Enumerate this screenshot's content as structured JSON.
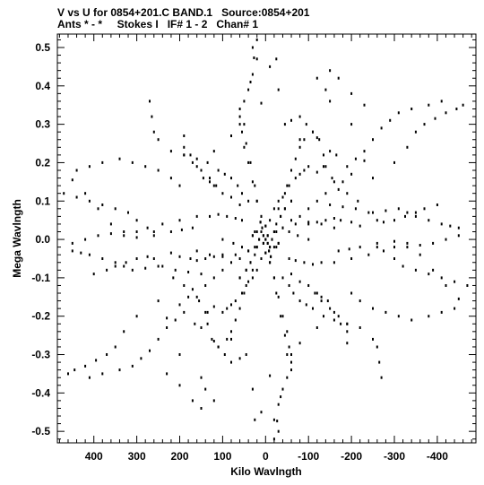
{
  "header": {
    "line1": "V vs U for 0854+201.C BAND.1   Source:0854+201",
    "line2": "Ants * - *     Stokes I   IF# 1 - 2   Chan# 1"
  },
  "colors": {
    "points": "#000000",
    "frame": "#000000",
    "background": "#ffffff"
  },
  "chart_data": {
    "type": "scatter",
    "xlabel": "Kilo Wavlngth",
    "ylabel": "Mega Wavlngth",
    "xlim": [
      485,
      -490
    ],
    "ylim": [
      -0.53,
      0.535
    ],
    "x_ticks": [
      400,
      300,
      200,
      100,
      0,
      -100,
      -200,
      -300,
      -400
    ],
    "x_tick_labels": [
      "400",
      "300",
      "200",
      "100",
      "0",
      "-100",
      "-200",
      "-300",
      "-400"
    ],
    "y_ticks": [
      0.5,
      0.4,
      0.3,
      0.2,
      0.1,
      0.0,
      -0.1,
      -0.2,
      -0.3,
      -0.4,
      -0.5
    ],
    "y_tick_labels": [
      "0.5",
      "0.4",
      "0.3",
      "0.2",
      "0.1",
      "0.0",
      "-0.1",
      "-0.2",
      "-0.3",
      "-0.4",
      "-0.5"
    ],
    "x_axis_direction": "reversed",
    "grid": false,
    "series": [
      {
        "points": [
          [
            20,
            0.52
          ],
          [
            27,
            0.473
          ],
          [
            35,
            0.41
          ],
          [
            10,
            0.355
          ],
          [
            -30,
            0.39
          ],
          [
            -45,
            0.3
          ],
          [
            -60,
            0.31
          ],
          [
            -80,
            0.26
          ],
          [
            -110,
            0.28
          ],
          [
            -120,
            0.175
          ],
          [
            -120,
            0.265
          ],
          [
            -135,
            0.19
          ],
          [
            -150,
            0.23
          ],
          [
            -165,
            0.22
          ],
          [
            -180,
            0.15
          ],
          [
            -200,
            0.17
          ],
          [
            -230,
            0.205
          ],
          [
            -250,
            0.16
          ],
          [
            -300,
            0.2
          ],
          [
            -330,
            0.24
          ],
          [
            -350,
            0.28
          ],
          [
            -370,
            0.3
          ],
          [
            -395,
            0.315
          ],
          [
            -420,
            0.33
          ],
          [
            -445,
            0.34
          ],
          [
            -460,
            0.35
          ],
          [
            -150,
            0.09
          ],
          [
            -180,
            0.085
          ],
          [
            -210,
            0.08
          ],
          [
            -250,
            0.07
          ],
          [
            -280,
            0.075
          ],
          [
            -310,
            0.08
          ],
          [
            -330,
            0.07
          ],
          [
            -350,
            0.06
          ],
          [
            -380,
            0.05
          ],
          [
            -410,
            0.04
          ],
          [
            -430,
            0.035
          ],
          [
            -450,
            0.03
          ],
          [
            -100,
            0.04
          ],
          [
            -120,
            0.045
          ],
          [
            -140,
            0.05
          ],
          [
            -160,
            0.055
          ],
          [
            -175,
            0.05
          ],
          [
            -200,
            0.045
          ],
          [
            -220,
            0.035
          ],
          [
            -260,
            -0.02
          ],
          [
            -300,
            -0.05
          ],
          [
            -320,
            -0.07
          ],
          [
            -350,
            -0.08
          ],
          [
            -380,
            -0.09
          ],
          [
            -410,
            -0.1
          ],
          [
            -440,
            -0.11
          ],
          [
            -470,
            -0.12
          ],
          [
            -500,
            -0.13
          ],
          [
            -120,
            -0.14
          ],
          [
            -130,
            -0.15
          ],
          [
            -145,
            -0.16
          ],
          [
            -160,
            -0.19
          ],
          [
            -175,
            -0.22
          ],
          [
            -190,
            -0.24
          ],
          [
            -190,
            -0.27
          ],
          [
            -120,
            -0.23
          ],
          [
            -80,
            -0.27
          ],
          [
            -60,
            -0.32
          ],
          [
            -50,
            -0.36
          ],
          [
            -40,
            -0.39
          ],
          [
            -30,
            -0.43
          ],
          [
            -20,
            -0.47
          ],
          [
            -30,
            -0.5
          ],
          [
            10,
            -0.45
          ],
          [
            25,
            -0.47
          ],
          [
            80,
            -0.32
          ],
          [
            95,
            -0.3
          ],
          [
            110,
            -0.28
          ],
          [
            125,
            -0.26
          ],
          [
            135,
            -0.22
          ],
          [
            140,
            -0.19
          ],
          [
            155,
            -0.16
          ],
          [
            170,
            -0.13
          ],
          [
            190,
            -0.12
          ],
          [
            215,
            -0.1
          ],
          [
            240,
            -0.07
          ],
          [
            260,
            -0.05
          ],
          [
            275,
            -0.045
          ],
          [
            300,
            -0.05
          ],
          [
            325,
            -0.06
          ],
          [
            350,
            -0.07
          ],
          [
            370,
            -0.08
          ],
          [
            400,
            -0.09
          ],
          [
            60,
            -0.05
          ],
          [
            80,
            -0.06
          ],
          [
            100,
            -0.08
          ],
          [
            120,
            -0.1
          ],
          [
            140,
            -0.12
          ],
          [
            160,
            -0.15
          ],
          [
            190,
            -0.19
          ],
          [
            210,
            -0.21
          ],
          [
            230,
            -0.23
          ],
          [
            250,
            -0.26
          ],
          [
            270,
            -0.29
          ],
          [
            290,
            -0.31
          ],
          [
            310,
            -0.33
          ],
          [
            340,
            -0.34
          ],
          [
            380,
            -0.35
          ],
          [
            410,
            -0.36
          ],
          [
            200,
            -0.3
          ],
          [
            150,
            -0.36
          ],
          [
            140,
            -0.39
          ],
          [
            120,
            -0.42
          ],
          [
            40,
            0.1
          ],
          [
            55,
            0.12
          ],
          [
            65,
            0.14
          ],
          [
            80,
            0.16
          ],
          [
            95,
            0.17
          ],
          [
            110,
            0.18
          ],
          [
            135,
            0.2
          ],
          [
            160,
            0.21
          ],
          [
            190,
            0.22
          ],
          [
            220,
            0.23
          ],
          [
            250,
            0.26
          ],
          [
            260,
            0.28
          ],
          [
            265,
            0.32
          ],
          [
            270,
            0.36
          ],
          [
            55,
            0.05
          ],
          [
            70,
            0.055
          ],
          [
            90,
            0.06
          ],
          [
            110,
            0.065
          ],
          [
            130,
            0.06
          ],
          [
            160,
            0.06
          ],
          [
            200,
            0.05
          ],
          [
            240,
            0.04
          ],
          [
            275,
            0.03
          ],
          [
            300,
            0.02
          ],
          [
            330,
            0.02
          ],
          [
            360,
            0.015
          ],
          [
            390,
            0.01
          ],
          [
            420,
            0.0
          ],
          [
            450,
            -0.01
          ],
          [
            200,
            0.14
          ],
          [
            220,
            0.16
          ],
          [
            250,
            0.18
          ],
          [
            280,
            0.19
          ],
          [
            310,
            0.2
          ],
          [
            340,
            0.21
          ],
          [
            380,
            0.2
          ],
          [
            410,
            0.19
          ],
          [
            440,
            0.18
          ],
          [
            170,
            0.03
          ],
          [
            195,
            0.025
          ],
          [
            220,
            0.02
          ],
          [
            260,
            0.01
          ],
          [
            300,
            0.005
          ],
          [
            330,
            0.01
          ],
          [
            360,
            0.04
          ],
          [
            390,
            0.08
          ],
          [
            420,
            0.12
          ],
          [
            450,
            0.155
          ],
          [
            230,
            -0.35
          ],
          [
            200,
            -0.38
          ],
          [
            170,
            -0.42
          ],
          [
            150,
            -0.44
          ],
          [
            -20,
            0.08
          ],
          [
            -30,
            0.1
          ],
          [
            -45,
            0.12
          ],
          [
            -55,
            0.14
          ],
          [
            -70,
            0.16
          ],
          [
            -80,
            0.17
          ],
          [
            -90,
            0.18
          ],
          [
            -100,
            0.19
          ],
          [
            -60,
            -0.09
          ],
          [
            -80,
            -0.11
          ],
          [
            -100,
            -0.12
          ],
          [
            -115,
            -0.14
          ],
          [
            -130,
            -0.16
          ],
          [
            -150,
            -0.18
          ],
          [
            -170,
            -0.2
          ],
          [
            -190,
            -0.22
          ],
          [
            30,
            -0.08
          ],
          [
            40,
            -0.11
          ],
          [
            50,
            -0.14
          ],
          [
            60,
            -0.18
          ],
          [
            70,
            -0.21
          ],
          [
            80,
            -0.24
          ],
          [
            90,
            -0.26
          ],
          [
            -10,
            -0.06
          ],
          [
            -20,
            -0.1
          ],
          [
            -30,
            -0.15
          ],
          [
            -40,
            -0.2
          ],
          [
            -50,
            -0.24
          ],
          [
            -55,
            -0.28
          ],
          [
            -60,
            -0.3
          ],
          [
            10,
            0.06
          ],
          [
            20,
            0.1
          ],
          [
            25,
            0.14
          ],
          [
            35,
            0.2
          ],
          [
            45,
            0.25
          ],
          [
            50,
            0.3
          ],
          [
            60,
            0.34
          ],
          [
            -10,
            0.05
          ],
          [
            -25,
            0.04
          ],
          [
            -40,
            0.03
          ],
          [
            -55,
            0.02
          ],
          [
            -75,
            0.01
          ],
          [
            -100,
            0.0
          ],
          [
            20,
            -0.02
          ],
          [
            40,
            -0.03
          ],
          [
            70,
            -0.04
          ],
          [
            100,
            -0.045
          ],
          [
            130,
            -0.04
          ],
          [
            160,
            -0.03
          ],
          [
            0,
            0.0
          ],
          [
            5,
            0.01
          ],
          [
            -5,
            0.01
          ],
          [
            5,
            -0.01
          ],
          [
            -5,
            -0.01
          ],
          [
            10,
            0.02
          ],
          [
            -10,
            -0.02
          ],
          [
            15,
            0.0
          ],
          [
            -15,
            0.0
          ],
          [
            8,
            0.03
          ],
          [
            -8,
            -0.03
          ],
          [
            -20,
            0.02
          ],
          [
            20,
            0.02
          ],
          [
            -25,
            -0.02
          ],
          [
            25,
            -0.02
          ],
          [
            0,
            0.035
          ],
          [
            0,
            -0.035
          ],
          [
            12,
            0.045
          ],
          [
            -12,
            -0.045
          ],
          [
            30,
            0.01
          ],
          [
            -30,
            -0.01
          ],
          [
            -35,
            0.06
          ],
          [
            35,
            -0.06
          ],
          [
            -45,
            0.08
          ],
          [
            45,
            -0.08
          ],
          [
            -60,
            0.1
          ],
          [
            60,
            -0.1
          ]
        ]
      }
    ]
  }
}
